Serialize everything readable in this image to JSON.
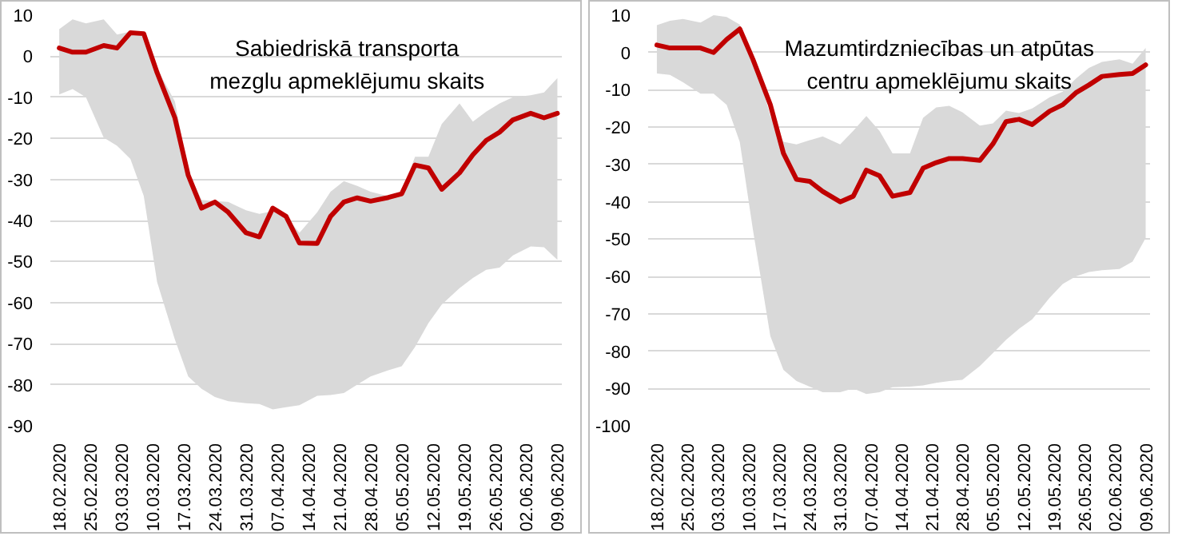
{
  "chart_data": [
    {
      "type": "line",
      "title": "Sabiedriskā transporta mezglu apmeklējumu skaits",
      "grid": "y",
      "xlim": [
        "2020-02-16",
        "2020-06-10"
      ],
      "ylim": [
        -90,
        10
      ],
      "yticks": [
        -90,
        -80,
        -70,
        -60,
        -50,
        -40,
        -30,
        -20,
        -10,
        0,
        10
      ],
      "xticks": [
        {
          "value": "2020-02-18",
          "label": "18.02.2020"
        },
        {
          "value": "2020-02-25",
          "label": "25.02.2020"
        },
        {
          "value": "2020-03-03",
          "label": "03.03.2020"
        },
        {
          "value": "2020-03-10",
          "label": "10.03.2020"
        },
        {
          "value": "2020-03-17",
          "label": "17.03.2020"
        },
        {
          "value": "2020-03-24",
          "label": "24.03.2020"
        },
        {
          "value": "2020-03-31",
          "label": "31.03.2020"
        },
        {
          "value": "2020-04-07",
          "label": "07.04.2020"
        },
        {
          "value": "2020-04-14",
          "label": "14.04.2020"
        },
        {
          "value": "2020-04-21",
          "label": "21.04.2020"
        },
        {
          "value": "2020-04-28",
          "label": "28.04.2020"
        },
        {
          "value": "2020-05-05",
          "label": "05.05.2020"
        },
        {
          "value": "2020-05-12",
          "label": "12.05.2020"
        },
        {
          "value": "2020-05-19",
          "label": "19.05.2020"
        },
        {
          "value": "2020-05-26",
          "label": "26.05.2020"
        },
        {
          "value": "2020-06-02",
          "label": "02.06.2020"
        },
        {
          "value": "2020-06-09",
          "label": "09.06.2020"
        }
      ],
      "series": [
        {
          "color": "#c00000",
          "x": [
            "2020-02-18",
            "2020-02-21",
            "2020-02-24",
            "2020-02-28",
            "2020-03-02",
            "2020-03-05",
            "2020-03-08",
            "2020-03-11",
            "2020-03-15",
            "2020-03-18",
            "2020-03-21",
            "2020-03-24",
            "2020-03-27",
            "2020-03-31",
            "2020-04-03",
            "2020-04-06",
            "2020-04-09",
            "2020-04-12",
            "2020-04-16",
            "2020-04-19",
            "2020-04-22",
            "2020-04-25",
            "2020-04-28",
            "2020-05-02",
            "2020-05-05",
            "2020-05-08",
            "2020-05-11",
            "2020-05-14",
            "2020-05-18",
            "2020-05-21",
            "2020-05-24",
            "2020-05-27",
            "2020-05-30",
            "2020-06-03",
            "2020-06-06",
            "2020-06-09"
          ],
          "values": [
            2,
            1,
            1,
            2.6,
            2,
            5.7,
            5.5,
            -4,
            -15,
            -29,
            -37,
            -35.5,
            -38,
            -43,
            -44,
            -37,
            -39,
            -45.5,
            -45.6,
            -39,
            -35.5,
            -34.5,
            -35.3,
            -34.4,
            -33.5,
            -26.5,
            -27.2,
            -32.4,
            -28.4,
            -24,
            -20.5,
            -18.5,
            -15.5,
            -13.9,
            -15,
            -13.9
          ],
          "lower": [
            -9.3,
            -8,
            -10,
            -19.8,
            -21.8,
            -25,
            -34,
            -55,
            -69,
            -78,
            -81,
            -83,
            -84,
            -84.5,
            -84.7,
            -86,
            -85.5,
            -85,
            -82.7,
            -82.5,
            -82,
            -80,
            -78,
            -76.5,
            -75.5,
            -70.8,
            -65,
            -60.5,
            -56.5,
            -54,
            -52,
            -51.5,
            -48.5,
            -46.3,
            -46.5,
            -49.6
          ],
          "upper": [
            6.6,
            9,
            8,
            9,
            5.3,
            6,
            6,
            -3,
            -11,
            -28,
            -35,
            -35.3,
            -35.5,
            -37.5,
            -38.4,
            -37.7,
            -39,
            -43,
            -38,
            -33,
            -30.4,
            -31.6,
            -33,
            -34.1,
            -33,
            -24.5,
            -24.5,
            -16.5,
            -11.5,
            -15.9,
            -13.5,
            -11.5,
            -10,
            -9.5,
            -8.8,
            -5.3
          ]
        }
      ]
    },
    {
      "type": "line",
      "title": "Mazumtirdzniecības un atpūtas centru apmeklējumu skaits",
      "grid": "y",
      "xlim": [
        "2020-02-16",
        "2020-06-10"
      ],
      "ylim": [
        -100,
        10
      ],
      "yticks": [
        -100,
        -90,
        -80,
        -70,
        -60,
        -50,
        -40,
        -30,
        -20,
        -10,
        0,
        10
      ],
      "xticks": [
        {
          "value": "2020-02-18",
          "label": "18.02.2020"
        },
        {
          "value": "2020-02-25",
          "label": "25.02.2020"
        },
        {
          "value": "2020-03-03",
          "label": "03.03.2020"
        },
        {
          "value": "2020-03-10",
          "label": "10.03.2020"
        },
        {
          "value": "2020-03-17",
          "label": "17.03.2020"
        },
        {
          "value": "2020-03-24",
          "label": "24.03.2020"
        },
        {
          "value": "2020-03-31",
          "label": "31.03.2020"
        },
        {
          "value": "2020-04-07",
          "label": "07.04.2020"
        },
        {
          "value": "2020-04-14",
          "label": "14.04.2020"
        },
        {
          "value": "2020-04-21",
          "label": "21.04.2020"
        },
        {
          "value": "2020-04-28",
          "label": "28.04.2020"
        },
        {
          "value": "2020-05-05",
          "label": "05.05.2020"
        },
        {
          "value": "2020-05-12",
          "label": "12.05.2020"
        },
        {
          "value": "2020-05-19",
          "label": "19.05.2020"
        },
        {
          "value": "2020-05-26",
          "label": "26.05.2020"
        },
        {
          "value": "2020-06-02",
          "label": "02.06.2020"
        },
        {
          "value": "2020-06-09",
          "label": "09.06.2020"
        }
      ],
      "series": [
        {
          "color": "#c00000",
          "x": [
            "2020-02-18",
            "2020-02-21",
            "2020-02-24",
            "2020-02-28",
            "2020-03-02",
            "2020-03-05",
            "2020-03-08",
            "2020-03-11",
            "2020-03-15",
            "2020-03-18",
            "2020-03-21",
            "2020-03-24",
            "2020-03-27",
            "2020-03-31",
            "2020-04-03",
            "2020-04-06",
            "2020-04-09",
            "2020-04-12",
            "2020-04-16",
            "2020-04-19",
            "2020-04-22",
            "2020-04-25",
            "2020-04-28",
            "2020-05-02",
            "2020-05-05",
            "2020-05-08",
            "2020-05-11",
            "2020-05-14",
            "2020-05-18",
            "2020-05-21",
            "2020-05-24",
            "2020-05-27",
            "2020-05-30",
            "2020-06-03",
            "2020-06-06",
            "2020-06-09"
          ],
          "values": [
            2,
            1.2,
            1.2,
            1.2,
            0,
            3.5,
            6.3,
            -1.8,
            -14,
            -27,
            -34,
            -34.5,
            -37.2,
            -40,
            -38.5,
            -31.5,
            -33,
            -38.5,
            -37.5,
            -31,
            -29.5,
            -28.4,
            -28.4,
            -28.9,
            -24.5,
            -18.5,
            -17.9,
            -19.3,
            -15.7,
            -14,
            -10.8,
            -8.7,
            -6.4,
            -5.9,
            -5.6,
            -3.3
          ],
          "lower": [
            -5.6,
            -6,
            -8,
            -11,
            -11,
            -14,
            -24,
            -47.4,
            -76,
            -85,
            -88,
            -89.5,
            -91,
            -91,
            -90,
            -91.5,
            -91,
            -89.7,
            -89.5,
            -89.2,
            -88.5,
            -88,
            -87.7,
            -84,
            -80.5,
            -77,
            -74,
            -71.5,
            -65.7,
            -62,
            -60,
            -58.8,
            -58.3,
            -58,
            -56,
            -49.7
          ],
          "upper": [
            7.3,
            8.5,
            9,
            8,
            10,
            9.5,
            7.5,
            -0.3,
            -17,
            -23.9,
            -24.6,
            -23.5,
            -22.5,
            -24.6,
            -21,
            -17,
            -21,
            -27,
            -27,
            -17.5,
            -14.7,
            -14.3,
            -16,
            -19.6,
            -19,
            -15.6,
            -16.2,
            -15,
            -12,
            -10.5,
            -7,
            -4.1,
            -2.5,
            -1.8,
            -3,
            1.2
          ]
        }
      ]
    }
  ]
}
